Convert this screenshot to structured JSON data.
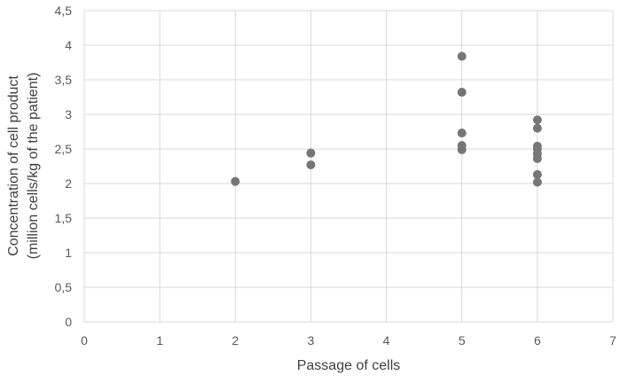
{
  "chart_data": {
    "type": "scatter",
    "title": "",
    "xlabel": "Passage of cells",
    "ylabel_lines": [
      "Concentration of cell product",
      "(million cells/kg of the patient)"
    ],
    "xlim": [
      0,
      7
    ],
    "ylim": [
      0,
      4.5
    ],
    "x_ticks": [
      "0",
      "1",
      "2",
      "3",
      "4",
      "5",
      "6",
      "7"
    ],
    "y_ticks": [
      "0",
      "0,5",
      "1",
      "1,5",
      "2",
      "2,5",
      "3",
      "3,5",
      "4",
      "4,5"
    ],
    "grid": true,
    "legend": "none",
    "marker_color": "#767676",
    "points": [
      {
        "x": 2,
        "y": 2.03
      },
      {
        "x": 3,
        "y": 2.27
      },
      {
        "x": 3,
        "y": 2.44
      },
      {
        "x": 5,
        "y": 2.49
      },
      {
        "x": 5,
        "y": 2.55
      },
      {
        "x": 5,
        "y": 2.73
      },
      {
        "x": 5,
        "y": 3.32
      },
      {
        "x": 5,
        "y": 3.84
      },
      {
        "x": 6,
        "y": 2.02
      },
      {
        "x": 6,
        "y": 2.13
      },
      {
        "x": 6,
        "y": 2.36
      },
      {
        "x": 6,
        "y": 2.43
      },
      {
        "x": 6,
        "y": 2.5
      },
      {
        "x": 6,
        "y": 2.54
      },
      {
        "x": 6,
        "y": 2.8
      },
      {
        "x": 6,
        "y": 2.92
      }
    ]
  }
}
